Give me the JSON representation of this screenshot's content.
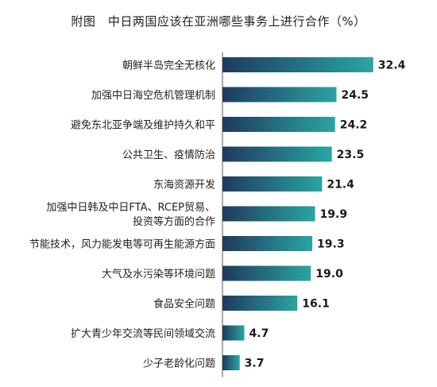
{
  "chart_data": {
    "type": "bar",
    "orientation": "horizontal",
    "title": "附图　中日两国应该在亚洲哪些事务上进行合作（%）",
    "xlabel": "",
    "ylabel": "",
    "xlim": [
      0,
      35
    ],
    "grid": false,
    "legend": "none",
    "categories": [
      "朝鲜半岛完全无核化",
      "加强中日海空危机管理机制",
      "避免东北亚争端及维护持久和平",
      "公共卫生、疫情防治",
      "东海资源开发",
      "加强中日韩及中日FTA、RCEP贸易、投资等方面的合作",
      "节能技术，风力能发电等可再生能源方面",
      "大气及水污染等环境问题",
      "食品安全问题",
      "扩大青少年交流等民间领域交流",
      "少子老龄化问题"
    ],
    "category_lines": [
      [
        "朝鲜半岛完全无核化"
      ],
      [
        "加强中日海空危机管理机制"
      ],
      [
        "避免东北亚争端及维护持久和平"
      ],
      [
        "公共卫生、疫情防治"
      ],
      [
        "东海资源开发"
      ],
      [
        "加强中日韩及中日FTA、RCEP贸易、",
        "投资等方面的合作"
      ],
      [
        "节能技术，风力能发电等可再生能源方面"
      ],
      [
        "大气及水污染等环境问题"
      ],
      [
        "食品安全问题"
      ],
      [
        "扩大青少年交流等民间领域交流"
      ],
      [
        "少子老龄化问题"
      ]
    ],
    "values": [
      32.4,
      24.5,
      24.2,
      23.5,
      21.4,
      19.9,
      19.3,
      19.0,
      16.1,
      4.7,
      3.7
    ],
    "value_labels": [
      "32.4",
      "24.5",
      "24.2",
      "23.5",
      "21.4",
      "19.9",
      "19.3",
      "19.0",
      "16.1",
      "4.7",
      "3.7"
    ],
    "colors": {
      "bar_start": "#1f3a5f",
      "bar_end": "#2aa5a2",
      "axis": "#555555"
    }
  }
}
